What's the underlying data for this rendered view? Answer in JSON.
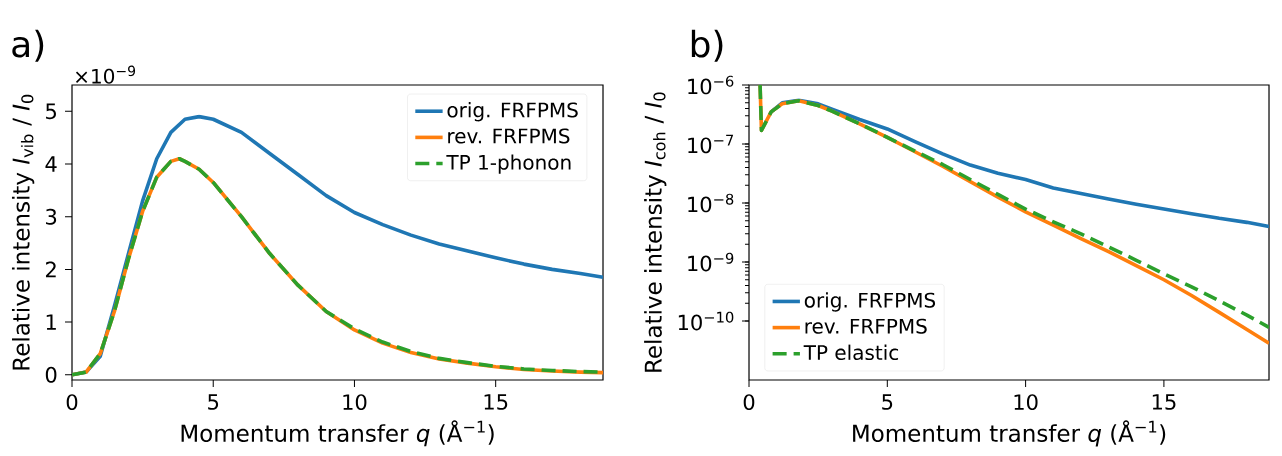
{
  "chart_data": [
    {
      "type": "line",
      "title": "a)",
      "xlabel": "Momentum transfer *q* (Å$^{−1}$)",
      "ylabel": "Relative intensity *I*$_{vib}$ / *I*$_{0}$",
      "annotations": [
        "×10$^{−9}$"
      ],
      "xlim": [
        0,
        18.8
      ],
      "ylim": [
        -0.1,
        5.5
      ],
      "xticks": [
        0,
        5,
        10,
        15
      ],
      "yticks": [
        0,
        1,
        2,
        3,
        4,
        5
      ],
      "legend": "top right",
      "marker": "none",
      "series": [
        {
          "name": "orig. FRFPMS",
          "color": "#1f77b4",
          "line_style": "solid",
          "x": [
            0,
            0.5,
            1,
            1.5,
            2,
            2.5,
            3,
            3.5,
            4,
            4.5,
            5,
            6,
            7,
            8,
            9,
            10,
            11,
            12,
            13,
            14,
            15,
            16,
            17,
            18,
            18.8
          ],
          "values": [
            0,
            0.05,
            0.35,
            1.3,
            2.3,
            3.3,
            4.1,
            4.6,
            4.85,
            4.9,
            4.85,
            4.6,
            4.2,
            3.8,
            3.4,
            3.08,
            2.85,
            2.65,
            2.48,
            2.35,
            2.22,
            2.1,
            2.0,
            1.92,
            1.85
          ]
        },
        {
          "name": "rev. FRFPMS",
          "color": "#ff7f0e",
          "line_style": "solid",
          "x": [
            0,
            0.5,
            1,
            1.5,
            2,
            2.5,
            3,
            3.5,
            3.8,
            4,
            4.5,
            5,
            6,
            7,
            8,
            9,
            10,
            11,
            12,
            13,
            14,
            15,
            16,
            17,
            18,
            18.8
          ],
          "values": [
            0,
            0.05,
            0.4,
            1.2,
            2.2,
            3.1,
            3.75,
            4.05,
            4.1,
            4.05,
            3.9,
            3.65,
            3.0,
            2.3,
            1.7,
            1.2,
            0.85,
            0.6,
            0.42,
            0.3,
            0.22,
            0.15,
            0.1,
            0.07,
            0.05,
            0.04
          ]
        },
        {
          "name": "TP 1-phonon",
          "color": "#2ca02c",
          "line_style": "dashed",
          "x": [
            0,
            0.5,
            1,
            1.5,
            2,
            2.5,
            3,
            3.5,
            3.8,
            4,
            4.5,
            5,
            6,
            7,
            8,
            9,
            10,
            11,
            12,
            13,
            14,
            15,
            16,
            17,
            18,
            18.8
          ],
          "values": [
            0,
            0.05,
            0.4,
            1.2,
            2.2,
            3.1,
            3.75,
            4.05,
            4.1,
            4.05,
            3.9,
            3.65,
            3.0,
            2.3,
            1.7,
            1.2,
            0.87,
            0.62,
            0.44,
            0.31,
            0.23,
            0.16,
            0.11,
            0.08,
            0.06,
            0.05
          ]
        }
      ]
    },
    {
      "type": "line",
      "title": "b)",
      "xlabel": "Momentum transfer *q* (Å$^{−1}$)",
      "ylabel": "Relative intensity *I*$_{coh}$ / *I*$_{0}$",
      "xlim": [
        0,
        18.8
      ],
      "ylim": [
        1e-11,
        1e-06
      ],
      "xticks": [
        0,
        5,
        10,
        15
      ],
      "yticks": [
        {
          "value": 1e-10,
          "label": "10$^{−10}$"
        },
        {
          "value": 1e-09,
          "label": "10$^{−9}$"
        },
        {
          "value": 1e-08,
          "label": "10$^{−8}$"
        },
        {
          "value": 1e-07,
          "label": "10$^{−7}$"
        },
        {
          "value": 1e-06,
          "label": "10$^{−6}$"
        }
      ],
      "log": "y",
      "legend": "bottom left",
      "marker": "none",
      "series": [
        {
          "name": "orig. FRFPMS",
          "color": "#1f77b4",
          "line_style": "solid",
          "x": [
            0.8,
            1.2,
            1.8,
            2.5,
            3,
            4,
            5,
            6,
            7,
            8,
            9,
            10,
            11,
            12,
            13,
            14,
            15,
            16,
            17,
            18,
            18.8
          ],
          "values": [
            3.5e-07,
            5e-07,
            5.5e-07,
            4.8e-07,
            3.9e-07,
            2.6e-07,
            1.8e-07,
            1.1e-07,
            6.8e-08,
            4.4e-08,
            3.2e-08,
            2.5e-08,
            1.8e-08,
            1.45e-08,
            1.17e-08,
            9.5e-09,
            7.9e-09,
            6.6e-09,
            5.5e-09,
            4.7e-09,
            4e-09
          ]
        },
        {
          "name": "rev. FRFPMS",
          "color": "#ff7f0e",
          "line_style": "solid",
          "x": [
            0.4,
            0.45,
            0.8,
            1.2,
            1.8,
            2.5,
            3,
            4,
            5,
            6,
            7,
            8,
            9,
            10,
            11,
            12,
            13,
            14,
            15,
            16,
            17,
            18,
            18.8
          ],
          "values": [
            1e-06,
            1.7e-07,
            3.5e-07,
            4.8e-07,
            5.4e-07,
            4.5e-07,
            3.6e-07,
            2.2e-07,
            1.3e-07,
            7.4e-08,
            4.2e-08,
            2.3e-08,
            1.26e-08,
            7.1e-09,
            4.2e-09,
            2.5e-09,
            1.5e-09,
            8.7e-10,
            5e-10,
            2.7e-10,
            1.4e-10,
            7.2e-11,
            4.2e-11
          ]
        },
        {
          "name": "TP elastic",
          "color": "#2ca02c",
          "line_style": "dashed",
          "x": [
            0.4,
            0.45,
            0.8,
            1.2,
            1.8,
            2.5,
            3,
            4,
            5,
            6,
            7,
            8,
            9,
            10,
            11,
            12,
            13,
            14,
            15,
            16,
            17,
            18,
            18.8
          ],
          "values": [
            1e-06,
            1.7e-07,
            3.5e-07,
            4.8e-07,
            5.4e-07,
            4.5e-07,
            3.6e-07,
            2.2e-07,
            1.3e-07,
            7.6e-08,
            4.5e-08,
            2.5e-08,
            1.4e-08,
            7.9e-09,
            4.8e-09,
            3e-09,
            1.8e-09,
            1.07e-09,
            6.3e-10,
            3.8e-10,
            2.2e-10,
            1.26e-10,
            7.8e-11
          ]
        }
      ]
    }
  ]
}
